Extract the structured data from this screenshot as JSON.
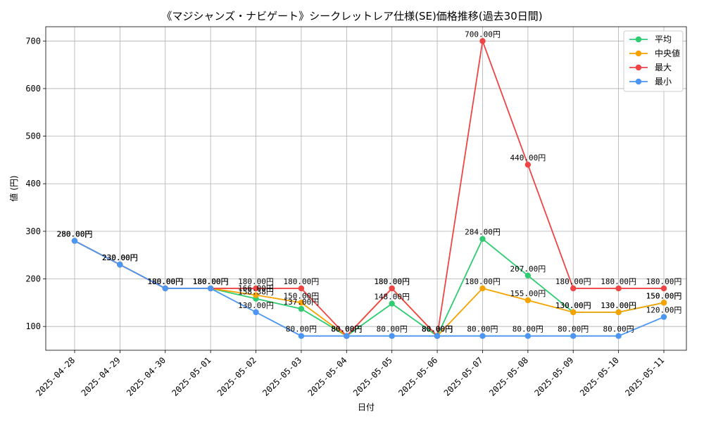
{
  "chart_data": {
    "type": "line",
    "title": "《マジシャンズ・ナビゲート》シークレットレア仕様(SE)価格推移(過去30日間)",
    "xlabel": "日付",
    "ylabel": "値 (円)",
    "ylim": [
      50,
      730
    ],
    "yticks": [
      100,
      200,
      300,
      400,
      500,
      600,
      700
    ],
    "grid": true,
    "legend_position": "top-right",
    "label_suffix": "円",
    "categories": [
      "2025-04-28",
      "2025-04-29",
      "2025-04-30",
      "2025-05-01",
      "2025-05-02",
      "2025-05-03",
      "2025-05-04",
      "2025-05-05",
      "2025-05-06",
      "2025-05-07",
      "2025-05-08",
      "2025-05-09",
      "2025-05-10",
      "2025-05-11"
    ],
    "series": [
      {
        "name": "平均",
        "color": "#2ecc71",
        "values": [
          280,
          230,
          180,
          180,
          158.38,
          137,
          80,
          148,
          80,
          284,
          207,
          130,
          130,
          150
        ]
      },
      {
        "name": "中央値",
        "color": "#f5a300",
        "values": [
          280,
          230,
          180,
          180,
          166,
          150,
          80,
          180,
          80,
          180,
          155,
          130,
          130,
          150
        ]
      },
      {
        "name": "最大",
        "color": "#ef4444",
        "values": [
          280,
          230,
          180,
          180,
          180,
          180,
          80,
          180,
          80,
          700,
          440,
          180,
          180,
          180
        ]
      },
      {
        "name": "最小",
        "color": "#4b96f3",
        "values": [
          280,
          230,
          180,
          180,
          130,
          80,
          80,
          80,
          80,
          80,
          80,
          80,
          80,
          120
        ]
      }
    ]
  }
}
